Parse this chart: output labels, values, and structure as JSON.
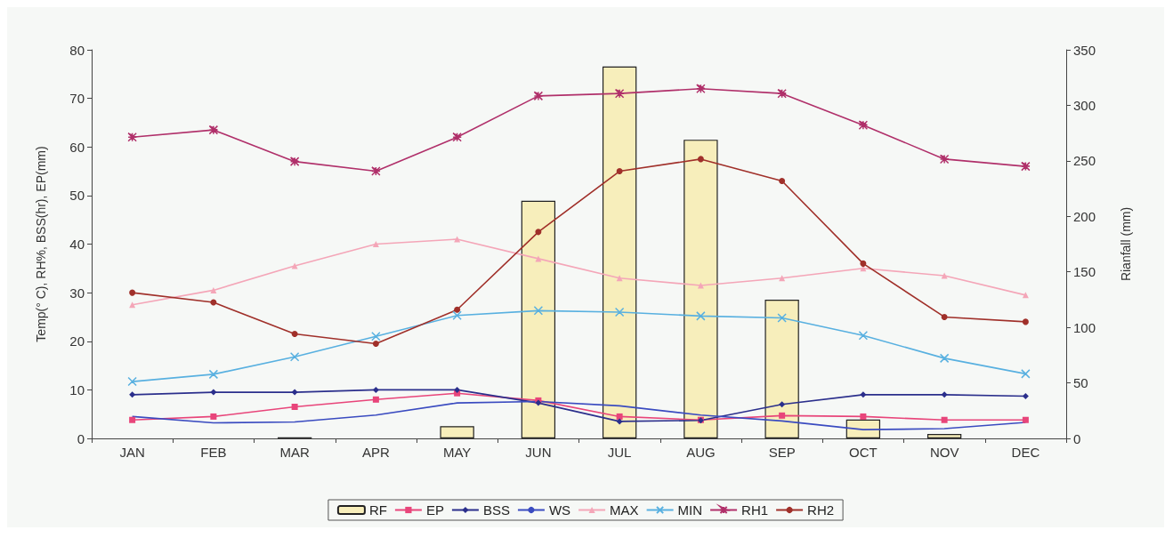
{
  "chart_data": {
    "type": "line",
    "ylabel": "Temp(° C), RH%, BSS(hr), EP(mm)",
    "y2label": "Rianfall (mm)",
    "categories": [
      "JAN",
      "FEB",
      "MAR",
      "APR",
      "MAY",
      "JUN",
      "JUL",
      "AUG",
      "SEP",
      "OCT",
      "NOV",
      "DEC"
    ],
    "ylim": [
      0,
      80
    ],
    "yticks": [
      0,
      10,
      20,
      30,
      40,
      50,
      60,
      70,
      80
    ],
    "y2lim": [
      0,
      350
    ],
    "y2ticks": [
      0,
      50,
      100,
      150,
      200,
      250,
      300,
      350
    ],
    "grid": false,
    "legend": "bottom",
    "series": [
      {
        "name": "RF",
        "type": "bar",
        "axis": "y2",
        "color": "#f7eebb",
        "values": [
          0,
          0,
          1,
          0,
          11,
          214,
          335,
          269,
          125,
          17,
          4,
          0
        ]
      },
      {
        "name": "EP",
        "color": "#e8457a",
        "marker": "square",
        "values": [
          3.8,
          4.5,
          6.5,
          8,
          9.3,
          7.8,
          4.5,
          3.8,
          4.7,
          4.5,
          3.8,
          3.8
        ]
      },
      {
        "name": "BSS",
        "color": "#2b2f8c",
        "marker": "diamond",
        "values": [
          9,
          9.5,
          9.5,
          10,
          10,
          7.3,
          3.5,
          3.7,
          7,
          9,
          9,
          8.7
        ]
      },
      {
        "name": "WS",
        "color": "#3a4bc0",
        "marker": "none",
        "values": [
          4.5,
          3.2,
          3.4,
          4.8,
          7.3,
          7.6,
          6.7,
          4.8,
          3.6,
          1.8,
          2,
          3.3
        ]
      },
      {
        "name": "MAX",
        "color": "#f4a6b8",
        "marker": "triangle",
        "values": [
          27.5,
          30.5,
          35.5,
          40,
          41,
          37,
          33,
          31.5,
          33,
          35,
          33.5,
          29.5
        ]
      },
      {
        "name": "MIN",
        "color": "#58b0e0",
        "marker": "cross",
        "values": [
          11.7,
          13.2,
          16.8,
          21,
          25.3,
          26.3,
          26,
          25.2,
          24.8,
          21.2,
          16.5,
          13.3
        ]
      },
      {
        "name": "RH1",
        "color": "#b0306a",
        "marker": "star",
        "values": [
          62,
          63.5,
          57,
          55,
          62,
          70.5,
          71,
          72,
          71,
          64.5,
          57.5,
          56
        ]
      },
      {
        "name": "RH2",
        "color": "#a0302a",
        "marker": "circle",
        "values": [
          30,
          28,
          21.5,
          19.5,
          26.5,
          42.5,
          55,
          57.5,
          53,
          36,
          25,
          24
        ]
      }
    ]
  }
}
